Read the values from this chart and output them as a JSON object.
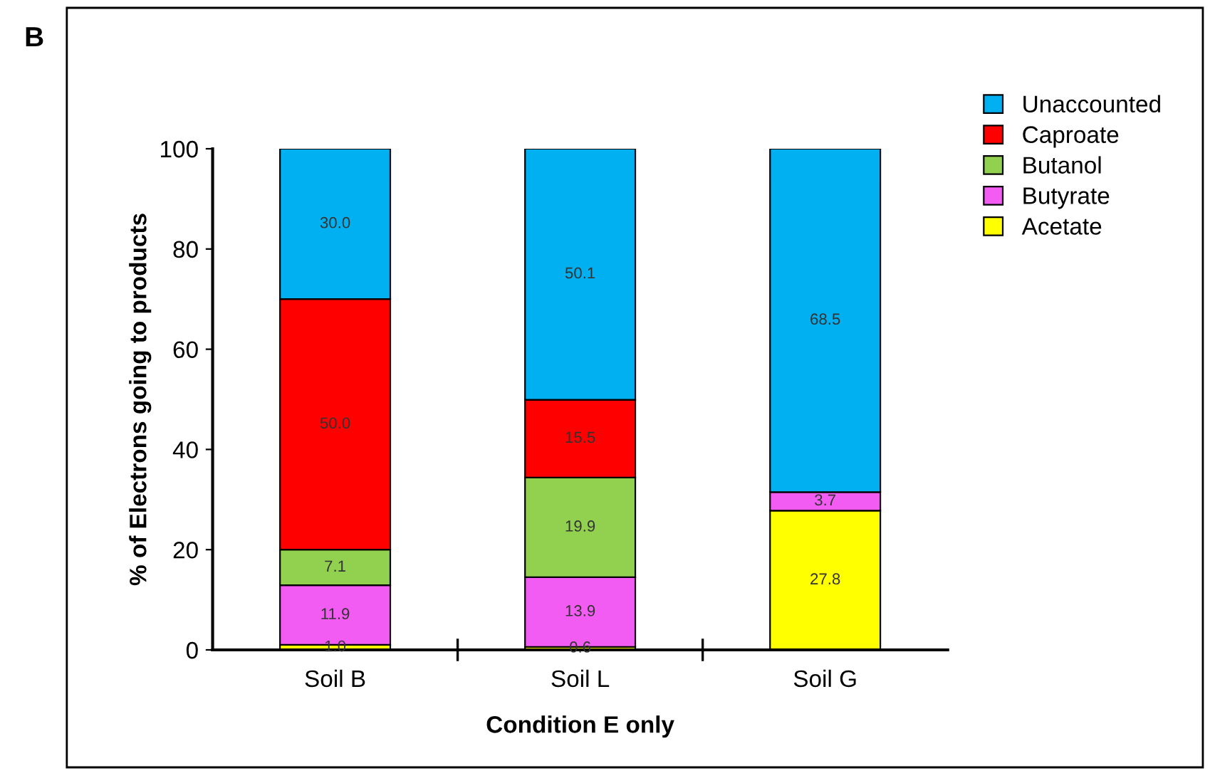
{
  "chart_data": {
    "type": "bar",
    "stacked": true,
    "xlabel": "Condition E only",
    "ylabel": "% of Electrons going to products",
    "categories": [
      "Soil B",
      "Soil L",
      "Soil G"
    ],
    "series": [
      {
        "name": "Acetate",
        "color": "#ffff00",
        "values": [
          1.0,
          0.6,
          27.8
        ],
        "value_labels": [
          "1.0",
          "0.6",
          "27.8"
        ]
      },
      {
        "name": "Butyrate",
        "color": "#f25cf2",
        "values": [
          11.9,
          13.9,
          3.7
        ],
        "value_labels": [
          "11.9",
          "13.9",
          "3.7"
        ]
      },
      {
        "name": "Butanol",
        "color": "#92d050",
        "values": [
          7.1,
          19.9,
          0.0
        ],
        "value_labels": [
          "7.1",
          "19.9",
          null
        ]
      },
      {
        "name": "Caproate",
        "color": "#ff0000",
        "values": [
          50.0,
          15.5,
          0.0
        ],
        "value_labels": [
          "50.0",
          "15.5",
          null
        ]
      },
      {
        "name": "Unaccounted",
        "color": "#00b0f0",
        "values": [
          30.0,
          50.1,
          68.5
        ],
        "value_labels": [
          "30.0",
          "50.1",
          "68.5"
        ]
      }
    ],
    "ylim": [
      0,
      100
    ],
    "yticks": [
      0,
      20,
      40,
      60,
      80,
      100
    ],
    "legend": "top right",
    "grid": false,
    "annotations": [
      "B"
    ]
  }
}
